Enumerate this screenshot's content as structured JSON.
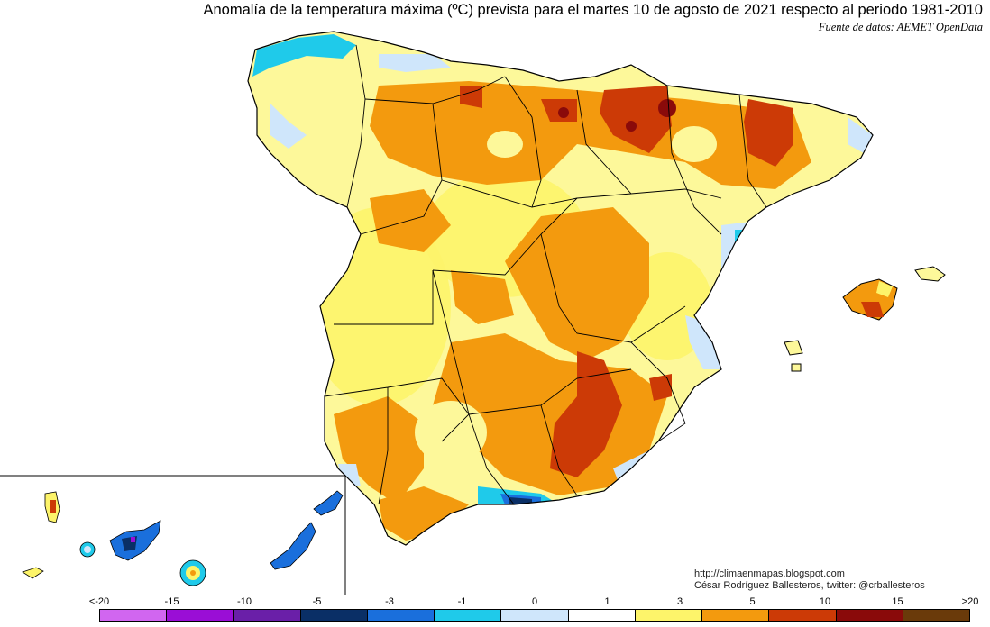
{
  "title": "Anomalía de la temperatura máxima (ºC) prevista para el martes 10 de agosto de 2021 respecto al periodo 1981-2010",
  "source": "Fuente de datos: AEMET OpenData",
  "credits": {
    "blog": "http://climaenmapas.blogspot.com",
    "author": "César Rodríguez Ballesteros, twitter: @crballesteros"
  },
  "legend": {
    "ticks": [
      "<-20",
      "-15",
      "-10",
      "-5",
      "-3",
      "-1",
      "0",
      "1",
      "3",
      "5",
      "10",
      "15",
      ">20"
    ],
    "colors": [
      "#d166f0",
      "#9a0ed6",
      "#6a1fa8",
      "#0a2f66",
      "#1a6fdc",
      "#1fcaea",
      "#cfe6fb",
      "#ffffff",
      "#fdf46a",
      "#f39a0e",
      "#cc3a06",
      "#8a0a0a",
      "#6a3a0a"
    ]
  },
  "palette": {
    "light_yellow": "#fdf89a",
    "yellow": "#fdf46a",
    "orange": "#f39a0e",
    "red": "#cc3a06",
    "dark_red": "#8a0a0a",
    "pale_blue": "#cfe6fb",
    "cyan": "#1fcaea",
    "blue": "#1a6fdc",
    "navy": "#0a2f66",
    "purple": "#9a0ed6"
  }
}
